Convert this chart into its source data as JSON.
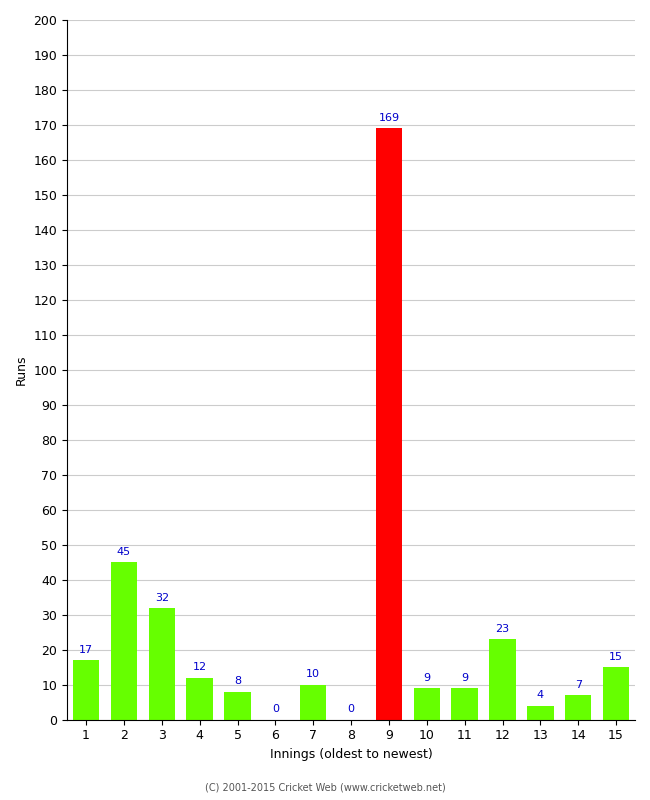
{
  "xlabel": "Innings (oldest to newest)",
  "ylabel": "Runs",
  "categories": [
    1,
    2,
    3,
    4,
    5,
    6,
    7,
    8,
    9,
    10,
    11,
    12,
    13,
    14,
    15
  ],
  "values": [
    17,
    45,
    32,
    12,
    8,
    0,
    10,
    0,
    169,
    9,
    9,
    23,
    4,
    7,
    15
  ],
  "bar_colors": [
    "#66ff00",
    "#66ff00",
    "#66ff00",
    "#66ff00",
    "#66ff00",
    "#66ff00",
    "#66ff00",
    "#66ff00",
    "#ff0000",
    "#66ff00",
    "#66ff00",
    "#66ff00",
    "#66ff00",
    "#66ff00",
    "#66ff00"
  ],
  "ylim": [
    0,
    200
  ],
  "yticks": [
    0,
    10,
    20,
    30,
    40,
    50,
    60,
    70,
    80,
    90,
    100,
    110,
    120,
    130,
    140,
    150,
    160,
    170,
    180,
    190,
    200
  ],
  "label_color": "#0000cc",
  "background_color": "#ffffff",
  "grid_color": "#cccccc",
  "footer": "(C) 2001-2015 Cricket Web (www.cricketweb.net)",
  "label_fontsize": 8,
  "axis_fontsize": 9,
  "title_fontsize": 11
}
